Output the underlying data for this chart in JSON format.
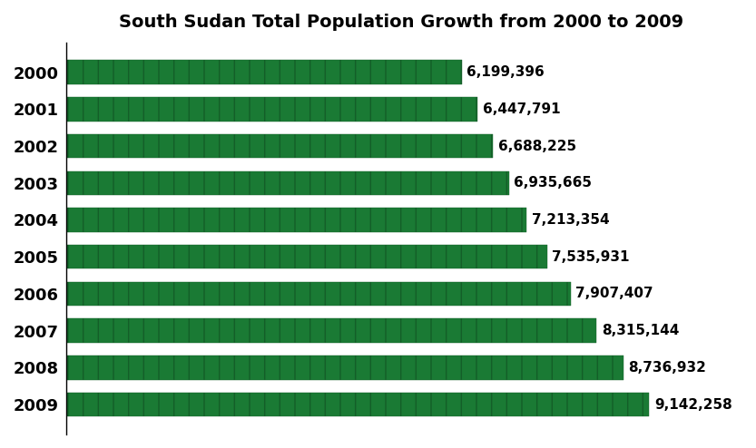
{
  "title": "South Sudan Total Population Growth from 2000 to 2009",
  "years": [
    "2000",
    "2001",
    "2002",
    "2003",
    "2004",
    "2005",
    "2006",
    "2007",
    "2008",
    "2009"
  ],
  "values": [
    6199396,
    6447791,
    6688225,
    6935665,
    7213354,
    7535931,
    7907407,
    8315144,
    8736932,
    9142258
  ],
  "labels": [
    "6,199,396",
    "6,447,791",
    "6,688,225",
    "6,935,665",
    "7,213,354",
    "7,535,931",
    "7,907,407",
    "8,315,144",
    "8,736,932",
    "9,142,258"
  ],
  "bar_color": "#1a7a34",
  "bar_edge_color": "#145e28",
  "background_color": "#ffffff",
  "title_fontsize": 14,
  "label_fontsize": 11,
  "ylabel_fontsize": 13,
  "xlim": [
    0,
    10500000
  ],
  "bar_height": 0.65
}
